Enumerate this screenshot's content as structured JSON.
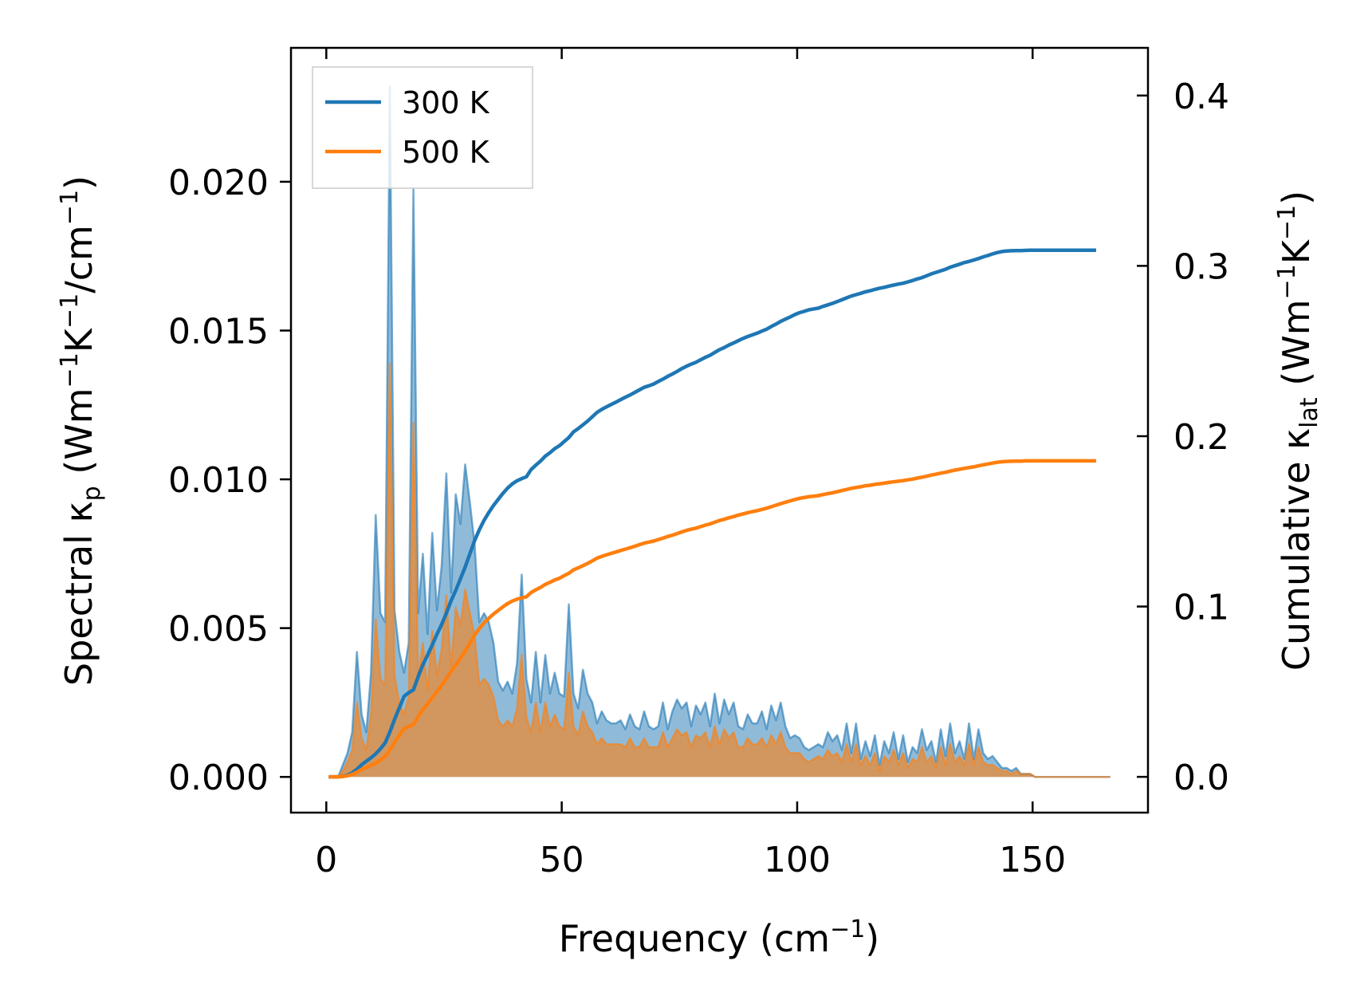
{
  "chart_data": {
    "type": "line",
    "xlabel": "Frequency (cm",
    "xlabel_sup": "−1",
    "xlabel_end": ")",
    "ylabel_left": "Spectral κ",
    "ylabel_left_sub": "p",
    "ylabel_left_units": " (Wm",
    "ylabel_left_sup1": "−1",
    "ylabel_left_mid": "K",
    "ylabel_left_sup2": "−1",
    "ylabel_left_mid2": "/cm",
    "ylabel_left_sup3": "−1",
    "ylabel_left_end": ")",
    "ylabel_right": "Cumulative κ",
    "ylabel_right_sub": "lat",
    "ylabel_right_units": " (Wm",
    "ylabel_right_sup1": "−1",
    "ylabel_right_mid": "K",
    "ylabel_right_sup2": "−1",
    "ylabel_right_end": ")",
    "xlim": [
      -7.5,
      174.5
    ],
    "ylim_left": [
      -0.0012,
      0.0245
    ],
    "ylim_right": [
      -0.021,
      0.428
    ],
    "xticks": [
      0,
      50,
      100,
      150
    ],
    "xtick_labels": [
      "0",
      "50",
      "100",
      "150"
    ],
    "yticks_left": [
      0.0,
      0.005,
      0.01,
      0.015,
      0.02
    ],
    "ytick_labels_left": [
      "0.000",
      "0.005",
      "0.010",
      "0.015",
      "0.020"
    ],
    "yticks_right": [
      0.0,
      0.1,
      0.2,
      0.3,
      0.4
    ],
    "ytick_labels_right": [
      "0.0",
      "0.1",
      "0.2",
      "0.3",
      "0.4"
    ],
    "legend_position": "top-left",
    "x": [
      0.5,
      1.5,
      2.5,
      3.5,
      4.5,
      5.5,
      6.5,
      7.5,
      8.5,
      9.5,
      10.5,
      11.5,
      12.5,
      13.5,
      14.5,
      15.5,
      16.5,
      17.5,
      18.5,
      19.5,
      20.5,
      21.5,
      22.5,
      23.5,
      24.5,
      25.5,
      26.5,
      27.5,
      28.5,
      29.5,
      30.5,
      31.5,
      32.5,
      33.5,
      34.5,
      35.5,
      36.5,
      37.5,
      38.5,
      39.5,
      40.5,
      41.5,
      42.5,
      43.5,
      44.5,
      45.5,
      46.5,
      47.5,
      48.5,
      49.5,
      50.5,
      51.5,
      52.5,
      53.5,
      54.5,
      55.5,
      56.5,
      57.5,
      58.5,
      59.5,
      60.5,
      61.5,
      62.5,
      63.5,
      64.5,
      65.5,
      66.5,
      67.5,
      68.5,
      69.5,
      70.5,
      71.5,
      72.5,
      73.5,
      74.5,
      75.5,
      76.5,
      77.5,
      78.5,
      79.5,
      80.5,
      81.5,
      82.5,
      83.5,
      84.5,
      85.5,
      86.5,
      87.5,
      88.5,
      89.5,
      90.5,
      91.5,
      92.5,
      93.5,
      94.5,
      95.5,
      96.5,
      97.5,
      98.5,
      99.5,
      100.5,
      101.5,
      102.5,
      103.5,
      104.5,
      105.5,
      106.5,
      107.5,
      108.5,
      109.5,
      110.5,
      111.5,
      112.5,
      113.5,
      114.5,
      115.5,
      116.5,
      117.5,
      118.5,
      119.5,
      120.5,
      121.5,
      122.5,
      123.5,
      124.5,
      125.5,
      126.5,
      127.5,
      128.5,
      129.5,
      130.5,
      131.5,
      132.5,
      133.5,
      134.5,
      135.5,
      136.5,
      137.5,
      138.5,
      139.5,
      140.5,
      141.5,
      142.5,
      143.5,
      144.5,
      145.5,
      146.5,
      147.5,
      148.5,
      149.5,
      150.5,
      151.5,
      152.5,
      153.5,
      154.5,
      155.5,
      156.5,
      157.5,
      158.5,
      159.5,
      160.5,
      161.5,
      162.5,
      163.5,
      164.5,
      165.5,
      166.5
    ],
    "series": [
      {
        "name": "300 K",
        "color": "#1f77b4",
        "spectral": [
          0,
          0,
          0,
          0.0004,
          0.0008,
          0.0015,
          0.0042,
          0.0021,
          0.0015,
          0.0035,
          0.0088,
          0.0055,
          0.0052,
          0.0232,
          0.0056,
          0.0042,
          0.0035,
          0.0045,
          0.0198,
          0.0055,
          0.0075,
          0.0048,
          0.0082,
          0.0056,
          0.0071,
          0.0102,
          0.0062,
          0.0095,
          0.0085,
          0.0105,
          0.0092,
          0.0078,
          0.0052,
          0.0055,
          0.0052,
          0.0045,
          0.0032,
          0.0029,
          0.0032,
          0.0028,
          0.0038,
          0.0068,
          0.0033,
          0.0025,
          0.0042,
          0.0025,
          0.0041,
          0.0028,
          0.0035,
          0.0028,
          0.0027,
          0.0058,
          0.0028,
          0.0023,
          0.0036,
          0.0028,
          0.0025,
          0.0018,
          0.0022,
          0.0019,
          0.0018,
          0.0018,
          0.0019,
          0.0016,
          0.0021,
          0.0017,
          0.0016,
          0.0022,
          0.0017,
          0.0016,
          0.0017,
          0.0025,
          0.0016,
          0.0022,
          0.0026,
          0.0023,
          0.0025,
          0.0017,
          0.0024,
          0.0021,
          0.0025,
          0.0017,
          0.0028,
          0.0018,
          0.0026,
          0.0021,
          0.0025,
          0.0017,
          0.0016,
          0.0021,
          0.0018,
          0.0018,
          0.0022,
          0.0016,
          0.0024,
          0.0019,
          0.0025,
          0.0017,
          0.0013,
          0.0014,
          0.0013,
          0.001,
          0.0009,
          0.001,
          0.0011,
          0.001,
          0.0015,
          0.0012,
          0.0014,
          0.0009,
          0.0018,
          0.0008,
          0.0018,
          0.0006,
          0.0012,
          0.0007,
          0.0014,
          0.0004,
          0.0012,
          0.0008,
          0.0015,
          0.0006,
          0.0014,
          0.0005,
          0.001,
          0.0008,
          0.0016,
          0.0009,
          0.0012,
          0.0005,
          0.0016,
          0.0007,
          0.0018,
          0.0008,
          0.0012,
          0.0006,
          0.0018,
          0.0006,
          0.0016,
          0.0008,
          0.0006,
          0.0007,
          0.0005,
          0.0003,
          0.0003,
          0.0002,
          0.0003,
          0.0001,
          0.0001,
          0.0001,
          0,
          0,
          0,
          0,
          0,
          0,
          0,
          0,
          0,
          0,
          0,
          0,
          0,
          0,
          0,
          0,
          0
        ],
        "cumulative": [
          0,
          0,
          0,
          0.0003,
          0.001,
          0.0023,
          0.0045,
          0.0071,
          0.0092,
          0.0112,
          0.0135,
          0.0165,
          0.0199,
          0.0263,
          0.0337,
          0.0405,
          0.0472,
          0.0494,
          0.0511,
          0.0588,
          0.0658,
          0.0714,
          0.0774,
          0.0837,
          0.0895,
          0.0961,
          0.1034,
          0.1095,
          0.1163,
          0.1232,
          0.131,
          0.1388,
          0.1451,
          0.1506,
          0.1552,
          0.1593,
          0.1629,
          0.1664,
          0.1695,
          0.172,
          0.1738,
          0.1751,
          0.1762,
          0.1804,
          0.183,
          0.1854,
          0.1883,
          0.1903,
          0.1927,
          0.1944,
          0.1968,
          0.1992,
          0.2025,
          0.2045,
          0.2067,
          0.2089,
          0.2114,
          0.214,
          0.2157,
          0.2172,
          0.2186,
          0.22,
          0.2215,
          0.2229,
          0.2242,
          0.2257,
          0.2272,
          0.2287,
          0.2296,
          0.2306,
          0.2321,
          0.2335,
          0.2351,
          0.2365,
          0.238,
          0.2397,
          0.2411,
          0.2423,
          0.2434,
          0.2449,
          0.2463,
          0.2475,
          0.2492,
          0.2508,
          0.252,
          0.2535,
          0.2547,
          0.2561,
          0.2574,
          0.2585,
          0.2595,
          0.2605,
          0.2617,
          0.2628,
          0.2644,
          0.2658,
          0.2674,
          0.2687,
          0.27,
          0.2714,
          0.2725,
          0.2733,
          0.2742,
          0.2747,
          0.2752,
          0.2762,
          0.2771,
          0.278,
          0.279,
          0.2801,
          0.2812,
          0.2823,
          0.2831,
          0.2839,
          0.2848,
          0.2854,
          0.2862,
          0.2869,
          0.2874,
          0.2881,
          0.2887,
          0.2893,
          0.2898,
          0.2906,
          0.2914,
          0.2923,
          0.2931,
          0.2942,
          0.2953,
          0.2962,
          0.2971,
          0.298,
          0.2992,
          0.3001,
          0.301,
          0.3019,
          0.3026,
          0.3034,
          0.3043,
          0.3053,
          0.3061,
          0.307,
          0.3078,
          0.3084,
          0.3087,
          0.3089,
          0.309,
          0.309,
          0.3091,
          0.3092,
          0.3092,
          0.3092,
          0.3092,
          0.3092,
          0.3092,
          0.3092,
          0.3092,
          0.3092,
          0.3092,
          0.3092,
          0.3092,
          0.3092,
          0.3092,
          0.3092
        ]
      },
      {
        "name": "500 K",
        "color": "#ff7f0e",
        "spectral": [
          0,
          0,
          0,
          0.0002,
          0.0005,
          0.0009,
          0.0025,
          0.0013,
          0.0009,
          0.0021,
          0.0053,
          0.0033,
          0.0031,
          0.0139,
          0.0034,
          0.0025,
          0.0021,
          0.0027,
          0.0119,
          0.0033,
          0.0045,
          0.0029,
          0.0049,
          0.0034,
          0.0043,
          0.0061,
          0.0037,
          0.0057,
          0.0051,
          0.0063,
          0.0055,
          0.0047,
          0.0031,
          0.0033,
          0.0031,
          0.0027,
          0.0019,
          0.0017,
          0.0019,
          0.0017,
          0.0023,
          0.0041,
          0.002,
          0.0015,
          0.0025,
          0.0015,
          0.0025,
          0.0017,
          0.0021,
          0.0017,
          0.0016,
          0.0035,
          0.0017,
          0.0014,
          0.0022,
          0.0017,
          0.0015,
          0.0011,
          0.0013,
          0.0011,
          0.0011,
          0.0011,
          0.0011,
          0.001,
          0.0013,
          0.001,
          0.001,
          0.0013,
          0.001,
          0.001,
          0.001,
          0.0015,
          0.001,
          0.0013,
          0.0016,
          0.0014,
          0.0015,
          0.001,
          0.0014,
          0.0013,
          0.0015,
          0.001,
          0.0017,
          0.0011,
          0.0016,
          0.0013,
          0.0015,
          0.001,
          0.001,
          0.0013,
          0.0011,
          0.0011,
          0.0013,
          0.001,
          0.0014,
          0.0011,
          0.0015,
          0.001,
          0.0008,
          0.0008,
          0.0008,
          0.0006,
          0.0005,
          0.0006,
          0.0007,
          0.0006,
          0.0009,
          0.0007,
          0.0008,
          0.0005,
          0.0011,
          0.0005,
          0.0011,
          0.0004,
          0.0007,
          0.0004,
          0.0008,
          0.0002,
          0.0007,
          0.0005,
          0.0009,
          0.0004,
          0.0008,
          0.0003,
          0.0006,
          0.0005,
          0.001,
          0.0005,
          0.0007,
          0.0003,
          0.001,
          0.0004,
          0.0011,
          0.0005,
          0.0007,
          0.0004,
          0.0011,
          0.0004,
          0.001,
          0.0005,
          0.0004,
          0.0004,
          0.0003,
          0.0002,
          0.0002,
          0.0001,
          0.0002,
          0.0001,
          0.0001,
          0.0001,
          0,
          0,
          0,
          0,
          0,
          0,
          0,
          0,
          0,
          0,
          0,
          0,
          0,
          0,
          0,
          0,
          0
        ],
        "cumulative": [
          0,
          0,
          0,
          0.0002,
          0.0006,
          0.0014,
          0.0027,
          0.0043,
          0.0055,
          0.0067,
          0.0081,
          0.0099,
          0.0119,
          0.0158,
          0.0202,
          0.0243,
          0.0283,
          0.0296,
          0.0307,
          0.0353,
          0.0395,
          0.0428,
          0.0464,
          0.0502,
          0.0537,
          0.0577,
          0.062,
          0.0657,
          0.0698,
          0.0739,
          0.0786,
          0.0833,
          0.0871,
          0.0904,
          0.0931,
          0.0956,
          0.0977,
          0.0998,
          0.1017,
          0.1032,
          0.1043,
          0.1051,
          0.1057,
          0.1082,
          0.1098,
          0.1112,
          0.113,
          0.1142,
          0.1156,
          0.1166,
          0.1181,
          0.1195,
          0.1215,
          0.1227,
          0.124,
          0.1253,
          0.1268,
          0.1284,
          0.1294,
          0.1303,
          0.1312,
          0.132,
          0.1329,
          0.1337,
          0.1345,
          0.1354,
          0.1363,
          0.1372,
          0.1378,
          0.1384,
          0.1393,
          0.1401,
          0.1411,
          0.1419,
          0.1428,
          0.1438,
          0.1447,
          0.1454,
          0.146,
          0.1469,
          0.1478,
          0.1485,
          0.1495,
          0.1505,
          0.1512,
          0.1521,
          0.1528,
          0.1537,
          0.1544,
          0.1551,
          0.1557,
          0.1563,
          0.157,
          0.1577,
          0.1586,
          0.1595,
          0.1604,
          0.1612,
          0.162,
          0.1628,
          0.1635,
          0.164,
          0.1645,
          0.1648,
          0.1651,
          0.1657,
          0.1663,
          0.1668,
          0.1674,
          0.1681,
          0.1687,
          0.1694,
          0.1699,
          0.1703,
          0.1709,
          0.1712,
          0.1717,
          0.1721,
          0.1724,
          0.1729,
          0.1732,
          0.1736,
          0.1739,
          0.1744,
          0.1748,
          0.1754,
          0.1759,
          0.1765,
          0.1772,
          0.1777,
          0.1783,
          0.1788,
          0.1795,
          0.1801,
          0.1806,
          0.1811,
          0.1816,
          0.182,
          0.1826,
          0.1832,
          0.1837,
          0.1842,
          0.1847,
          0.185,
          0.1852,
          0.1853,
          0.1854,
          0.1854,
          0.1855,
          0.1855,
          0.1855,
          0.1855,
          0.1855,
          0.1855,
          0.1855,
          0.1855,
          0.1855,
          0.1855,
          0.1855,
          0.1855,
          0.1855,
          0.1855,
          0.1855,
          0.1855
        ]
      }
    ]
  }
}
